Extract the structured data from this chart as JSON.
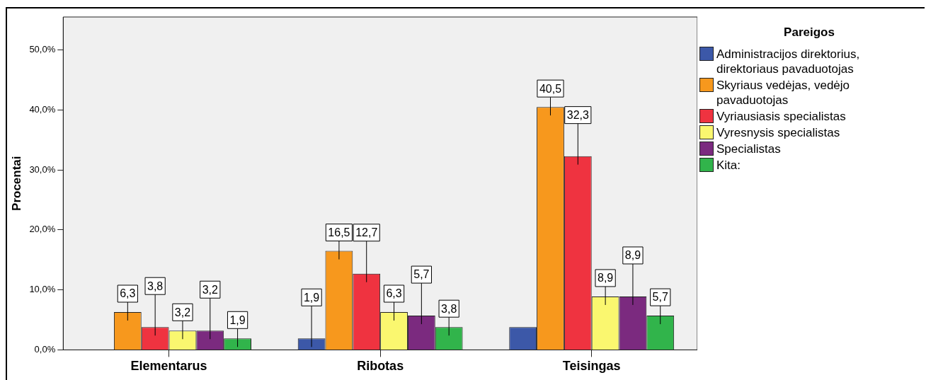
{
  "chart_data": {
    "type": "bar",
    "ylabel": "Procentai",
    "legend_title": "Pareigos",
    "legend": "right",
    "categories": [
      "Elementarus",
      "Ribotas",
      "Teisingas"
    ],
    "series": [
      {
        "name": "Administracijos direktorius, direktoriaus pavaduotojas",
        "color": "#3c58a8",
        "values": [
          null,
          1.9,
          3.8
        ],
        "value_labels": [
          null,
          "1,9",
          null
        ]
      },
      {
        "name": "Skyriaus vedėjas, vedėjo pavaduotojas",
        "color": "#f7981d",
        "values": [
          6.3,
          16.5,
          40.5
        ],
        "value_labels": [
          "6,3",
          "16,5",
          "40,5"
        ]
      },
      {
        "name": "Vyriausiasis specialistas",
        "color": "#ef3340",
        "values": [
          3.8,
          12.7,
          32.3
        ],
        "value_labels": [
          "3,8",
          "12,7",
          "32,3"
        ]
      },
      {
        "name": "Vyresnysis specialistas",
        "color": "#faf76f",
        "values": [
          3.2,
          6.3,
          8.9
        ],
        "value_labels": [
          "3,2",
          "6,3",
          "8,9"
        ]
      },
      {
        "name": "Specialistas",
        "color": "#7b2a7f",
        "values": [
          3.2,
          5.7,
          8.9
        ],
        "value_labels": [
          "3,2",
          "5,7",
          "8,9"
        ]
      },
      {
        "name": "Kita:",
        "color": "#31b44b",
        "values": [
          1.9,
          3.8,
          5.7
        ],
        "value_labels": [
          "1,9",
          "3,8",
          "5,7"
        ]
      }
    ],
    "ylim": [
      0,
      55.5
    ],
    "yticks": [
      {
        "value": 0,
        "label": "0,0%"
      },
      {
        "value": 10,
        "label": "10,0%"
      },
      {
        "value": 20,
        "label": "20,0%"
      },
      {
        "value": 30,
        "label": "30,0%"
      },
      {
        "value": 40,
        "label": "40,0%"
      },
      {
        "value": 50,
        "label": "50,0%"
      }
    ],
    "grid": false
  }
}
